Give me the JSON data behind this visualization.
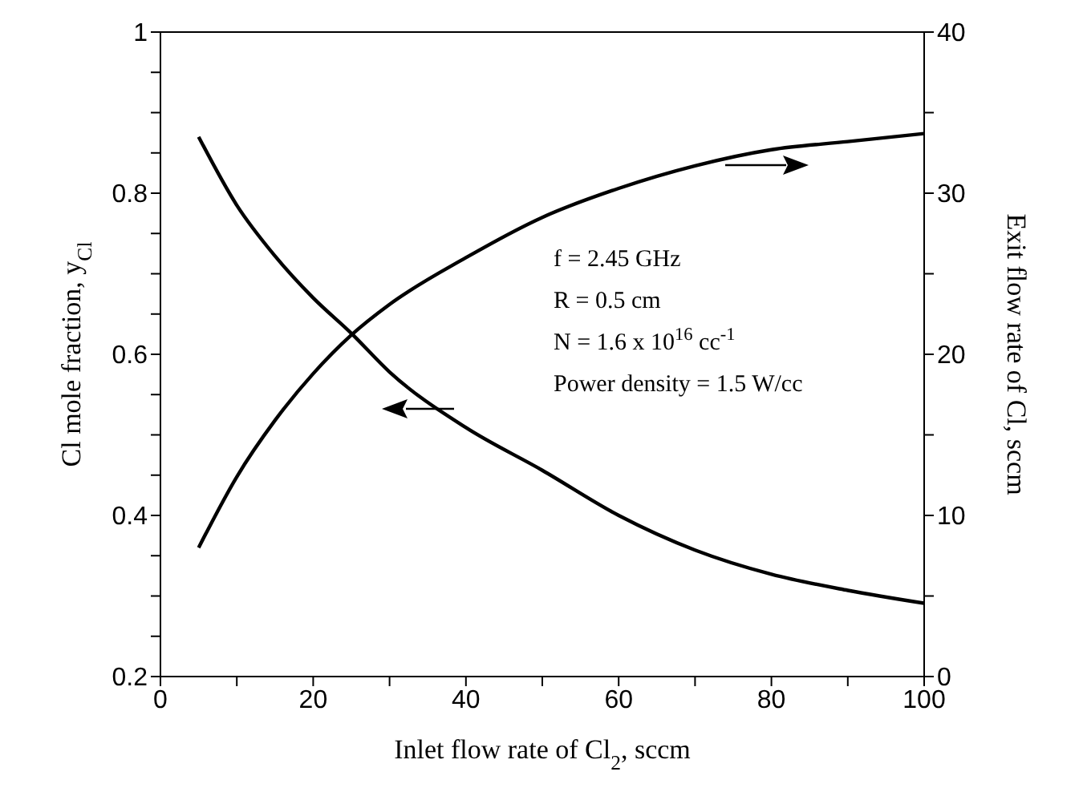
{
  "chart_data": {
    "type": "line",
    "xlabel": "Inlet flow rate of Cl$_{2}$, sccm",
    "ylabel": "Cl mole fraction, y$_{Cl}$",
    "y2label": "Exit flow rate of Cl, sccm",
    "x": [
      5,
      10,
      15,
      20,
      25,
      30,
      40,
      50,
      60,
      70,
      80,
      90,
      100
    ],
    "series": [
      {
        "color": "#000000",
        "values": [
          0.87,
          0.785,
          0.722,
          0.67,
          0.626,
          0.578,
          0.509,
          0.456,
          0.4,
          0.357,
          0.327,
          0.307,
          0.291
        ]
      },
      {
        "color": "#000000",
        "axis": "y2",
        "values": [
          8.0,
          12.4,
          15.9,
          18.8,
          21.2,
          23.1,
          26.0,
          28.5,
          30.3,
          31.7,
          32.7,
          33.2,
          33.7
        ]
      }
    ],
    "xlim": [
      0,
      100
    ],
    "xticks": [
      0,
      {
        "value": 10,
        "label": null
      },
      20,
      {
        "value": 30,
        "label": null
      },
      40,
      {
        "value": 50,
        "label": null
      },
      60,
      {
        "value": 70,
        "label": null
      },
      80,
      {
        "value": 90,
        "label": null
      },
      100
    ],
    "ylim": [
      0.2,
      1
    ],
    "yticks": [
      0.2,
      {
        "value": 0.25,
        "label": null
      },
      {
        "value": 0.3,
        "label": null
      },
      {
        "value": 0.35,
        "label": null
      },
      0.4,
      {
        "value": 0.45,
        "label": null
      },
      {
        "value": 0.5,
        "label": null
      },
      {
        "value": 0.55,
        "label": null
      },
      0.6,
      {
        "value": 0.65,
        "label": null
      },
      {
        "value": 0.7,
        "label": null
      },
      {
        "value": 0.75,
        "label": null
      },
      0.8,
      {
        "value": 0.85,
        "label": null
      },
      {
        "value": 0.9,
        "label": null
      },
      {
        "value": 0.95,
        "label": null
      },
      1
    ],
    "y2lim": [
      0,
      40
    ],
    "y2ticks": [
      0,
      {
        "value": 5,
        "label": null
      },
      10,
      {
        "value": 15,
        "label": null
      },
      20,
      {
        "value": 25,
        "label": null
      },
      30,
      {
        "value": 35,
        "label": null
      },
      40
    ],
    "annotations": [
      "f = 2.45 GHz",
      "R = 0.5 cm",
      "N = 1.6 x 10$^{16}$ cc$^{-1}$",
      "Power density = 1.5 W/cc"
    ],
    "grid": false,
    "legend": false,
    "marker": "none",
    "line_style": "solid"
  }
}
